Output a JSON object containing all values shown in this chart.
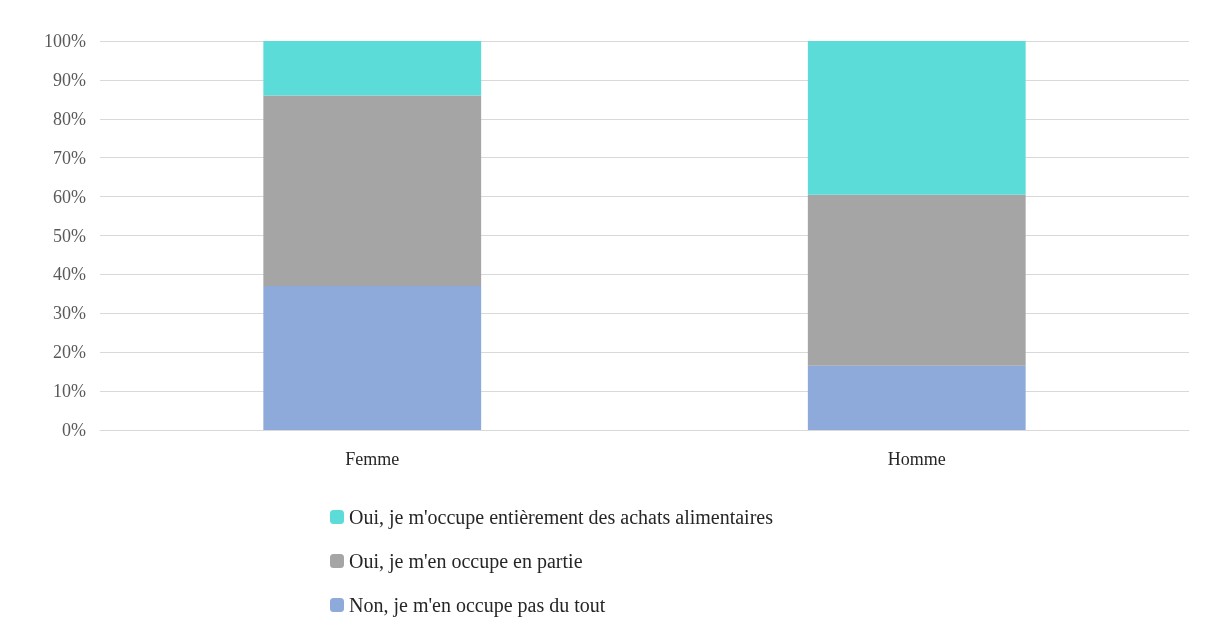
{
  "chart_data": {
    "type": "bar",
    "stacked": true,
    "categories": [
      "Femme",
      "Homme"
    ],
    "series": [
      {
        "name": "Non, je m'en occupe pas du tout",
        "color": "#8eaadb",
        "values": [
          37,
          16.5
        ]
      },
      {
        "name": "Oui, je m'en occupe en partie",
        "color": "#a5a5a5",
        "values": [
          49,
          44
        ]
      },
      {
        "name": "Oui, je m'occupe entièrement des achats alimentaires",
        "color": "#5bdcd9",
        "values": [
          14,
          39.5
        ]
      }
    ],
    "ylim": [
      0,
      100
    ],
    "yticks": [
      {
        "value": 0,
        "label": "0%"
      },
      {
        "value": 10,
        "label": "10%"
      },
      {
        "value": 20,
        "label": "20%"
      },
      {
        "value": 30,
        "label": "30%"
      },
      {
        "value": 40,
        "label": "40%"
      },
      {
        "value": 50,
        "label": "50%"
      },
      {
        "value": 60,
        "label": "60%"
      },
      {
        "value": 70,
        "label": "70%"
      },
      {
        "value": 80,
        "label": "80%"
      },
      {
        "value": 90,
        "label": "90%"
      },
      {
        "value": 100,
        "label": "100%"
      }
    ],
    "grid": "y",
    "legend": "bottom"
  }
}
